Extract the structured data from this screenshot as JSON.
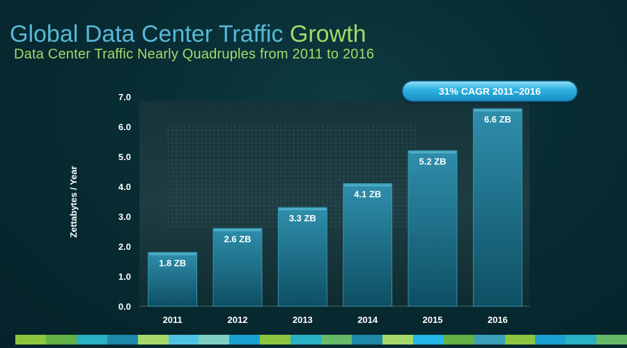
{
  "slide": {
    "title_part1": "Global Data Center Traffic ",
    "title_part2": "Growth",
    "subtitle": "Data Center Traffic Nearly Quadruples from 2011 to 2016",
    "cagr_label": "31% CAGR 2011–2016"
  },
  "colors": {
    "title_blue": "#57b9d7",
    "accent_green": "#a6d96a",
    "bar_top": "#2f8fac",
    "bar_bottom": "#0e4f63",
    "footer_palette": [
      "#8cc63f",
      "#62b246",
      "#2ab0c5",
      "#1e88a8",
      "#a6d96a",
      "#4fc3e3",
      "#7fd0c2",
      "#1aa0d0",
      "#8cc63f",
      "#2ab0c5",
      "#66bb6a",
      "#1e88a8",
      "#a6d96a",
      "#23b6e7",
      "#62b246",
      "#3aa0b8",
      "#8cc63f",
      "#1aa0d0",
      "#2ab0c5",
      "#66bb6a"
    ]
  },
  "chart_data": {
    "type": "bar",
    "title": "Global Data Center Traffic Growth",
    "categories": [
      "2011",
      "2012",
      "2013",
      "2014",
      "2015",
      "2016"
    ],
    "values": [
      1.8,
      2.6,
      3.3,
      4.1,
      5.2,
      6.6
    ],
    "data_labels": [
      "1.8 ZB",
      "2.6 ZB",
      "3.3 ZB",
      "4.1 ZB",
      "5.2 ZB",
      "6.6 ZB"
    ],
    "xlabel": "",
    "ylabel": "Zettabytes / Year",
    "ylim": [
      0,
      7
    ],
    "yticks": [
      0,
      1,
      2,
      3,
      4,
      5,
      6,
      7
    ],
    "ytick_labels": [
      "0.0",
      "1.0",
      "2.0",
      "3.0",
      "4.0",
      "5.0",
      "6.0",
      "7.0"
    ],
    "annotation": "31% CAGR 2011–2016",
    "grid": false,
    "legend": "none"
  }
}
